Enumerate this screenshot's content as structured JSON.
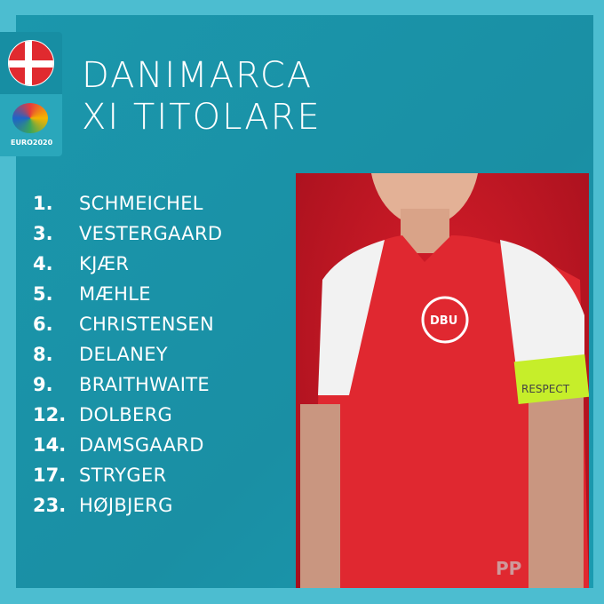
{
  "title": {
    "line1": "DANIMARCA",
    "line2": "XI TITOLARE"
  },
  "badge": {
    "flag": "denmark-flag",
    "logo_text": "EURO2020"
  },
  "lineup": [
    {
      "number": "1.",
      "name": "SCHMEICHEL"
    },
    {
      "number": "3.",
      "name": "VESTERGAARD"
    },
    {
      "number": "4.",
      "name": "KJÆR"
    },
    {
      "number": "5.",
      "name": "MÆHLE"
    },
    {
      "number": "6.",
      "name": "CHRISTENSEN"
    },
    {
      "number": "8.",
      "name": "DELANEY"
    },
    {
      "number": "9.",
      "name": "BRAITHWAITE"
    },
    {
      "number": "12.",
      "name": "DOLBERG"
    },
    {
      "number": "14.",
      "name": "DAMSGAARD"
    },
    {
      "number": "17.",
      "name": "STRYGER"
    },
    {
      "number": "23.",
      "name": "HØJBJERG"
    }
  ],
  "photo": {
    "armband_text": "RESPECT",
    "crest_text": "DBU"
  },
  "watermark": "PP",
  "colors": {
    "background": "#4cbdd0",
    "panel": "#1a93a8",
    "photo_bg": "#c8172a",
    "flag_red": "#e02a2f"
  }
}
